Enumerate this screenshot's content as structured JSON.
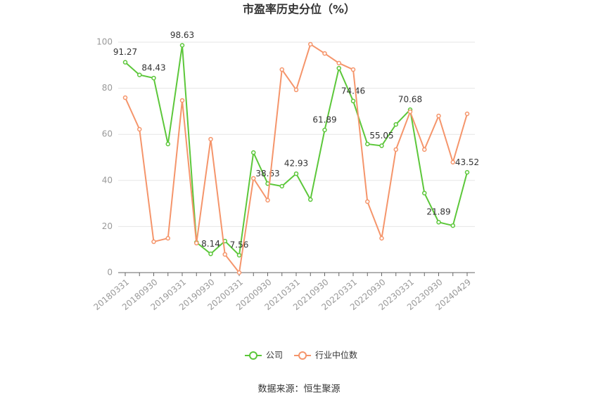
{
  "chart_data": {
    "type": "line",
    "title": "市盈率历史分位（%）",
    "categories": [
      "20180331",
      null,
      "20180930",
      null,
      "20190331",
      null,
      "20190930",
      null,
      "20200331",
      null,
      "20200930",
      null,
      "20210331",
      null,
      "20210930",
      null,
      "20220331",
      null,
      "20220930",
      null,
      "20230331",
      null,
      "20230930",
      null,
      "20240429"
    ],
    "series": [
      {
        "name": "公司",
        "color": "#5cc73a",
        "values": [
          91.27,
          85.8,
          84.43,
          55.8,
          98.63,
          13.1,
          8.14,
          13.7,
          7.56,
          52.1,
          38.63,
          37.5,
          42.93,
          31.7,
          61.89,
          88.7,
          74.46,
          55.8,
          55.05,
          64.3,
          70.68,
          34.5,
          21.89,
          20.4,
          43.52
        ],
        "value_labels": [
          "91.27",
          null,
          "84.43",
          null,
          "98.63",
          null,
          "8.14",
          null,
          "7.56",
          null,
          "38.63",
          null,
          "42.93",
          null,
          "61.89",
          null,
          "74.46",
          null,
          "55.05",
          null,
          "70.68",
          null,
          "21.89",
          null,
          "43.52"
        ]
      },
      {
        "name": "行业中位数",
        "color": "#f5956b",
        "values": [
          75.9,
          62.2,
          13.4,
          14.9,
          74.7,
          12.8,
          57.9,
          7.9,
          0,
          40.9,
          31.4,
          88.1,
          79.3,
          99.1,
          95.1,
          90.9,
          88.1,
          30.8,
          14.9,
          53.4,
          69.8,
          53.4,
          68.0,
          47.9,
          68.9
        ]
      }
    ],
    "ylim": [
      0,
      100
    ],
    "yticks": [
      0,
      20,
      40,
      60,
      80,
      100
    ],
    "grid": true,
    "legend": "bottom",
    "source": "数据来源：恒生聚源"
  }
}
